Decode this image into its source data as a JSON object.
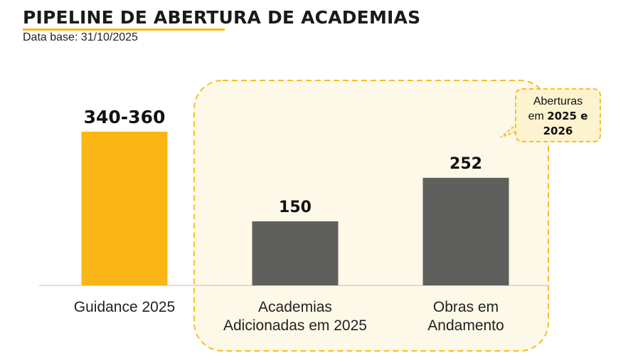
{
  "header": {
    "title": "PIPELINE DE ABERTURA DE ACADEMIAS",
    "subtitle": "Data base: 31/10/2025"
  },
  "colors": {
    "accent": "#fbb615",
    "dark_bar": "#5f5f5e",
    "highlight_fill": "#fef8e8",
    "highlight_border": "#f3c02c"
  },
  "callout": {
    "line1": "Aberturas",
    "line2_prefix": "em ",
    "line2_bold": "2025 e",
    "line3_bold": "2026"
  },
  "chart_data": {
    "type": "bar",
    "categories": [
      "Guidance 2025",
      "Academias Adicionadas em 2025",
      "Obras em Andamento"
    ],
    "category_lines": [
      [
        "Guidance 2025"
      ],
      [
        "Academias",
        "Adicionadas em 2025"
      ],
      [
        "Obras em",
        "Andamento"
      ]
    ],
    "values": [
      360,
      150,
      252
    ],
    "value_labels": [
      "340-360",
      "150",
      "252"
    ],
    "colors": [
      "#fbb615",
      "#5f5f5e",
      "#5f5f5e"
    ],
    "highlighted_categories": [
      "Academias Adicionadas em 2025",
      "Obras em Andamento"
    ],
    "ylim": [
      0,
      400
    ],
    "grid": false,
    "title": "PIPELINE DE ABERTURA DE ACADEMIAS",
    "xlabel": "",
    "ylabel": ""
  }
}
